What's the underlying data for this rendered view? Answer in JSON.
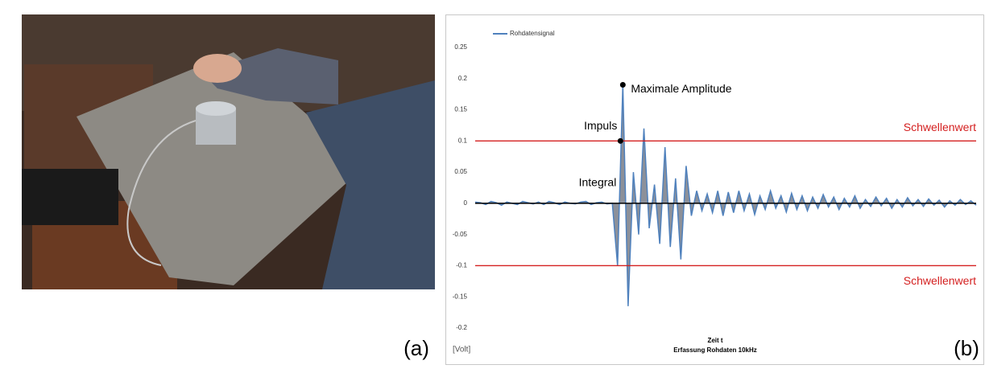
{
  "panels": {
    "left_label": "(a)",
    "right_label": "(b)"
  },
  "chart_data": {
    "type": "line",
    "series": [
      {
        "name": "Rohdatensignal",
        "color": "#4f81bd",
        "fill": "#8c9099",
        "values": [
          0.002,
          0.001,
          -0.002,
          0.003,
          0.001,
          -0.003,
          0.002,
          0.0,
          -0.002,
          0.003,
          0.001,
          -0.001,
          0.002,
          -0.002,
          0.003,
          0.001,
          -0.002,
          0.002,
          0.0,
          -0.001,
          0.002,
          0.003,
          -0.002,
          0.001,
          0.002,
          -0.001,
          0.0,
          -0.1,
          0.19,
          -0.165,
          0.05,
          -0.05,
          0.12,
          -0.04,
          0.03,
          -0.065,
          0.09,
          -0.07,
          0.04,
          -0.09,
          0.06,
          -0.02,
          0.02,
          -0.012,
          0.015,
          -0.015,
          0.02,
          -0.02,
          0.018,
          -0.015,
          0.02,
          -0.012,
          0.015,
          -0.018,
          0.012,
          -0.01,
          0.02,
          -0.008,
          0.012,
          -0.014,
          0.016,
          -0.01,
          0.012,
          -0.012,
          0.01,
          -0.008,
          0.014,
          -0.006,
          0.01,
          -0.01,
          0.008,
          -0.006,
          0.012,
          -0.008,
          0.006,
          -0.005,
          0.01,
          -0.004,
          0.008,
          -0.008,
          0.006,
          -0.006,
          0.009,
          -0.004,
          0.006,
          -0.005,
          0.007,
          -0.003,
          0.005,
          -0.006,
          0.004,
          -0.003,
          0.006,
          -0.002,
          0.004,
          -0.003
        ]
      }
    ],
    "ylim": [
      -0.2,
      0.25
    ],
    "yticks": [
      0.25,
      0.2,
      0.15,
      0.1,
      0.05,
      0,
      -0.05,
      -0.1,
      -0.15,
      -0.2
    ],
    "thresholds": [
      {
        "value": 0.1,
        "label": "Schwellenwert"
      },
      {
        "value": -0.1,
        "label": "Schwellenwert"
      }
    ],
    "annotations": [
      "Maximale Amplitude",
      "Impuls",
      "Integral"
    ],
    "ylabel": "[Volt]",
    "xlabel": "Zeit t",
    "xsublabel": "Erfassung Rohdaten 10kHz"
  }
}
